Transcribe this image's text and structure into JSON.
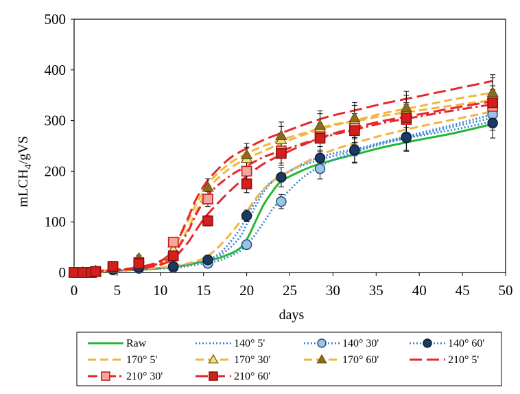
{
  "chart_data": {
    "type": "line",
    "title": "",
    "xlabel": "days",
    "ylabel": "mLCH4/gVS",
    "ylabel_main": "mLCH",
    "ylabel_sub": "4",
    "ylabel_tail": "/gVS",
    "xlim": [
      0,
      50
    ],
    "ylim": [
      0,
      500
    ],
    "xticks": [
      0,
      5,
      10,
      15,
      20,
      25,
      30,
      35,
      40,
      45,
      50
    ],
    "yticks": [
      0,
      100,
      200,
      300,
      400,
      500
    ],
    "grid": false,
    "legend_position": "bottom",
    "sample_days": [
      0,
      1,
      2,
      2.5,
      4.5,
      7.5,
      11.5,
      15.5,
      20,
      24,
      28.5,
      32.5,
      38.5,
      48.5
    ],
    "series": [
      {
        "name": "Raw",
        "color": "#22b833",
        "dash": "solid",
        "marker": "none",
        "curve": [
          [
            0,
            0
          ],
          [
            4,
            3
          ],
          [
            8,
            6
          ],
          [
            12,
            12
          ],
          [
            15,
            22
          ],
          [
            17,
            30
          ],
          [
            19,
            45
          ],
          [
            20,
            65
          ],
          [
            21,
            100
          ],
          [
            22,
            135
          ],
          [
            23,
            160
          ],
          [
            24,
            180
          ],
          [
            26,
            198
          ],
          [
            28,
            212
          ],
          [
            30,
            222
          ],
          [
            33,
            235
          ],
          [
            36,
            248
          ],
          [
            40,
            262
          ],
          [
            44,
            275
          ],
          [
            48.5,
            293
          ]
        ],
        "values": []
      },
      {
        "name": "140° 5'",
        "color": "#3f88d2",
        "dash": "dot",
        "marker": "none",
        "curve": [
          [
            0,
            0
          ],
          [
            4,
            3
          ],
          [
            8,
            6
          ],
          [
            12,
            12
          ],
          [
            15,
            22
          ],
          [
            17,
            35
          ],
          [
            19,
            65
          ],
          [
            20,
            95
          ],
          [
            21,
            130
          ],
          [
            22,
            160
          ],
          [
            23,
            180
          ],
          [
            24,
            192
          ],
          [
            26,
            208
          ],
          [
            28,
            220
          ],
          [
            30,
            230
          ],
          [
            33,
            242
          ],
          [
            36,
            255
          ],
          [
            40,
            272
          ],
          [
            44,
            288
          ],
          [
            48.5,
            305
          ]
        ],
        "values": []
      },
      {
        "name": "140° 30'",
        "color": "#3f88d2",
        "dash": "dot",
        "marker": "circle-light",
        "curve": [
          [
            0,
            0
          ],
          [
            4,
            3
          ],
          [
            8,
            6
          ],
          [
            12,
            10
          ],
          [
            15,
            18
          ],
          [
            17,
            25
          ],
          [
            19,
            40
          ],
          [
            20,
            55
          ],
          [
            21,
            75
          ],
          [
            22,
            100
          ],
          [
            23,
            125
          ],
          [
            24,
            145
          ],
          [
            26,
            180
          ],
          [
            28,
            205
          ],
          [
            30,
            222
          ],
          [
            33,
            240
          ],
          [
            36,
            258
          ],
          [
            40,
            275
          ],
          [
            44,
            292
          ],
          [
            48.5,
            312
          ]
        ],
        "values": [
          0,
          0,
          0,
          2,
          5,
          8,
          10,
          18,
          55,
          140,
          205,
          240,
          268,
          312
        ]
      },
      {
        "name": "140° 60'",
        "color": "#3f88d2",
        "dash": "dot",
        "marker": "circle-dark",
        "curve": [
          [
            0,
            0
          ],
          [
            4,
            3
          ],
          [
            8,
            6
          ],
          [
            12,
            12
          ],
          [
            15,
            22
          ],
          [
            17,
            40
          ],
          [
            19,
            80
          ],
          [
            20,
            110
          ],
          [
            21,
            140
          ],
          [
            22,
            165
          ],
          [
            23,
            180
          ],
          [
            24,
            190
          ],
          [
            26,
            210
          ],
          [
            28,
            225
          ],
          [
            30,
            235
          ],
          [
            33,
            245
          ],
          [
            36,
            258
          ],
          [
            40,
            270
          ],
          [
            44,
            282
          ],
          [
            48.5,
            298
          ]
        ],
        "values": [
          0,
          0,
          0,
          2,
          6,
          10,
          12,
          25,
          112,
          188,
          226,
          242,
          266,
          295
        ]
      },
      {
        "name": "170° 5'",
        "color": "#f4b43c",
        "dash": "dash",
        "marker": "none",
        "curve": [
          [
            0,
            0
          ],
          [
            4,
            3
          ],
          [
            8,
            7
          ],
          [
            12,
            14
          ],
          [
            15,
            28
          ],
          [
            17,
            55
          ],
          [
            19,
            95
          ],
          [
            20,
            120
          ],
          [
            21,
            145
          ],
          [
            22,
            165
          ],
          [
            23,
            180
          ],
          [
            24,
            190
          ],
          [
            26,
            210
          ],
          [
            28,
            228
          ],
          [
            30,
            242
          ],
          [
            33,
            258
          ],
          [
            36,
            272
          ],
          [
            40,
            288
          ],
          [
            44,
            302
          ],
          [
            48.5,
            318
          ]
        ],
        "values": []
      },
      {
        "name": "170° 30'",
        "color": "#f4b43c",
        "dash": "dash",
        "marker": "triangle-light",
        "curve": [
          [
            0,
            0
          ],
          [
            4,
            4
          ],
          [
            8,
            10
          ],
          [
            11,
            30
          ],
          [
            13,
            80
          ],
          [
            14,
            115
          ],
          [
            15,
            150
          ],
          [
            16,
            175
          ],
          [
            18,
            205
          ],
          [
            20,
            225
          ],
          [
            22,
            240
          ],
          [
            24,
            255
          ],
          [
            26,
            268
          ],
          [
            28,
            280
          ],
          [
            30,
            290
          ],
          [
            33,
            302
          ],
          [
            36,
            315
          ],
          [
            40,
            328
          ],
          [
            44,
            342
          ],
          [
            48.5,
            355
          ]
        ],
        "values": [
          0,
          0,
          0,
          2,
          8,
          20,
          45,
          145,
          225,
          262,
          285,
          300,
          318,
          350
        ]
      },
      {
        "name": "170° 60'",
        "color": "#f4b43c",
        "dash": "dash",
        "marker": "triangle-dark",
        "curve": [
          [
            0,
            0
          ],
          [
            4,
            4
          ],
          [
            8,
            10
          ],
          [
            11,
            35
          ],
          [
            13,
            95
          ],
          [
            14,
            130
          ],
          [
            15,
            160
          ],
          [
            16,
            185
          ],
          [
            18,
            215
          ],
          [
            20,
            235
          ],
          [
            22,
            250
          ],
          [
            24,
            262
          ],
          [
            26,
            272
          ],
          [
            28,
            282
          ],
          [
            30,
            292
          ],
          [
            33,
            300
          ],
          [
            36,
            310
          ],
          [
            40,
            320
          ],
          [
            44,
            330
          ],
          [
            48.5,
            340
          ]
        ],
        "values": [
          0,
          0,
          0,
          3,
          10,
          28,
          58,
          168,
          232,
          270,
          290,
          305,
          325,
          355
        ]
      },
      {
        "name": "210° 5'",
        "color": "#e8262b",
        "dash": "longdash",
        "marker": "none",
        "curve": [
          [
            0,
            0
          ],
          [
            4,
            5
          ],
          [
            8,
            12
          ],
          [
            11,
            35
          ],
          [
            13,
            100
          ],
          [
            14,
            140
          ],
          [
            15,
            170
          ],
          [
            16,
            192
          ],
          [
            18,
            225
          ],
          [
            20,
            245
          ],
          [
            22,
            262
          ],
          [
            24,
            275
          ],
          [
            26,
            288
          ],
          [
            28,
            300
          ],
          [
            30,
            310
          ],
          [
            33,
            322
          ],
          [
            36,
            334
          ],
          [
            40,
            348
          ],
          [
            44,
            362
          ],
          [
            48.5,
            378
          ]
        ],
        "values": []
      },
      {
        "name": "210° 30'",
        "color": "#e8262b",
        "dash": "dashdot",
        "marker": "square-light",
        "curve": [
          [
            0,
            0
          ],
          [
            4,
            4
          ],
          [
            8,
            10
          ],
          [
            11,
            28
          ],
          [
            13,
            75
          ],
          [
            14,
            110
          ],
          [
            15,
            140
          ],
          [
            16,
            162
          ],
          [
            18,
            190
          ],
          [
            20,
            210
          ],
          [
            22,
            228
          ],
          [
            24,
            240
          ],
          [
            26,
            252
          ],
          [
            28,
            262
          ],
          [
            30,
            272
          ],
          [
            33,
            284
          ],
          [
            36,
            296
          ],
          [
            40,
            308
          ],
          [
            44,
            320
          ],
          [
            48.5,
            332
          ]
        ],
        "values": [
          0,
          0,
          0,
          2,
          12,
          20,
          60,
          145,
          200,
          240,
          268,
          285,
          302,
          328
        ]
      },
      {
        "name": "210° 60'",
        "color": "#e8262b",
        "dash": "longdash",
        "marker": "square-dark",
        "curve": [
          [
            0,
            0
          ],
          [
            4,
            4
          ],
          [
            8,
            9
          ],
          [
            11,
            22
          ],
          [
            13,
            55
          ],
          [
            14,
            80
          ],
          [
            15,
            105
          ],
          [
            16,
            125
          ],
          [
            18,
            160
          ],
          [
            20,
            190
          ],
          [
            22,
            215
          ],
          [
            24,
            232
          ],
          [
            26,
            248
          ],
          [
            28,
            262
          ],
          [
            30,
            274
          ],
          [
            33,
            288
          ],
          [
            36,
            300
          ],
          [
            40,
            312
          ],
          [
            44,
            325
          ],
          [
            48.5,
            338
          ]
        ],
        "values": [
          0,
          0,
          0,
          2,
          12,
          18,
          33,
          102,
          175,
          235,
          265,
          280,
          305,
          335
        ]
      }
    ]
  }
}
